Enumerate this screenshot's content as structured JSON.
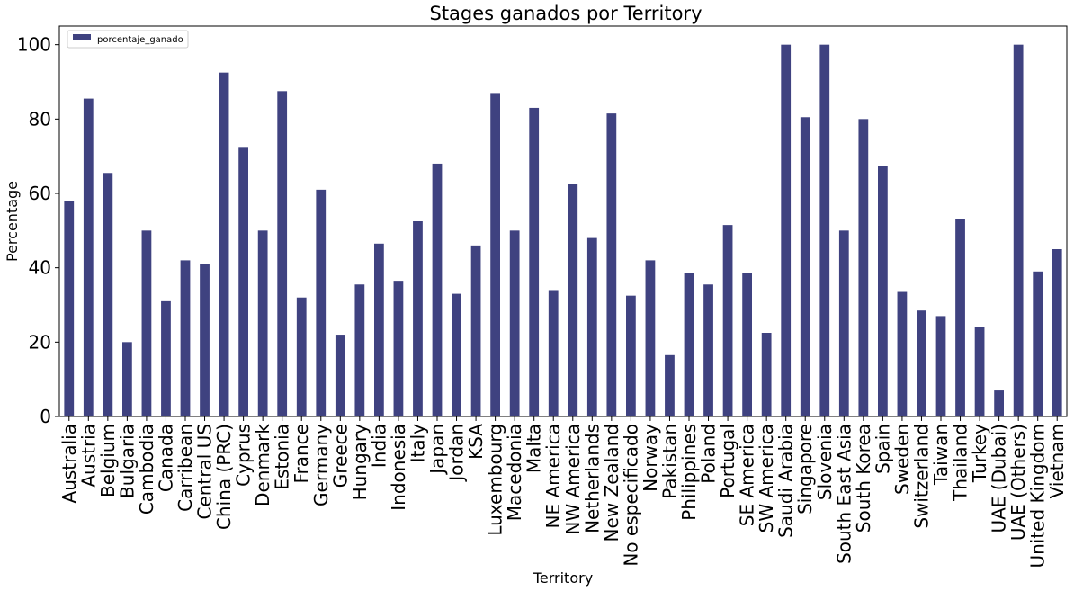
{
  "chart_data": {
    "type": "bar",
    "title": "Stages ganados por Territory",
    "xlabel": "Territory",
    "ylabel": "Percentage",
    "ylim": [
      0,
      105
    ],
    "yticks": [
      0,
      20,
      40,
      60,
      80,
      100
    ],
    "grid": false,
    "legend_position": "top-left",
    "colors": {
      "bar": "#3f4280",
      "background": "#ffffff",
      "axis": "#000000"
    },
    "categories": [
      "Australia",
      "Austria",
      "Belgium",
      "Bulgaria",
      "Cambodia",
      "Canada",
      "Carribean",
      "Central US",
      "China (PRC)",
      "Cyprus",
      "Denmark",
      "Estonia",
      "France",
      "Germany",
      "Greece",
      "Hungary",
      "India",
      "Indonesia",
      "Italy",
      "Japan",
      "Jordan",
      "KSA",
      "Luxembourg",
      "Macedonia",
      "Malta",
      "NE America",
      "NW America",
      "Netherlands",
      "New Zealand",
      "No especificado",
      "Norway",
      "Pakistan",
      "Philippines",
      "Poland",
      "Portugal",
      "SE America",
      "SW America",
      "Saudi Arabia",
      "Singapore",
      "Slovenia",
      "South East Asia",
      "South Korea",
      "Spain",
      "Sweden",
      "Switzerland",
      "Taiwan",
      "Thailand",
      "Turkey",
      "UAE (Dubai)",
      "UAE (Others)",
      "United Kingdom",
      "Vietnam"
    ],
    "series": [
      {
        "name": "porcentaje_ganado",
        "values": [
          58,
          85.5,
          65.5,
          20,
          50,
          31,
          42,
          41,
          92.5,
          72.5,
          50,
          87.5,
          32,
          61,
          22,
          35.5,
          46.5,
          36.5,
          52.5,
          68,
          33,
          46,
          87,
          50,
          83,
          34,
          62.5,
          48,
          81.5,
          32.5,
          42,
          16.5,
          38.5,
          35.5,
          51.5,
          38.5,
          22.5,
          100,
          80.5,
          100,
          50,
          80,
          67.5,
          33.5,
          28.5,
          27,
          53,
          24,
          7,
          100,
          39,
          45
        ]
      }
    ]
  }
}
